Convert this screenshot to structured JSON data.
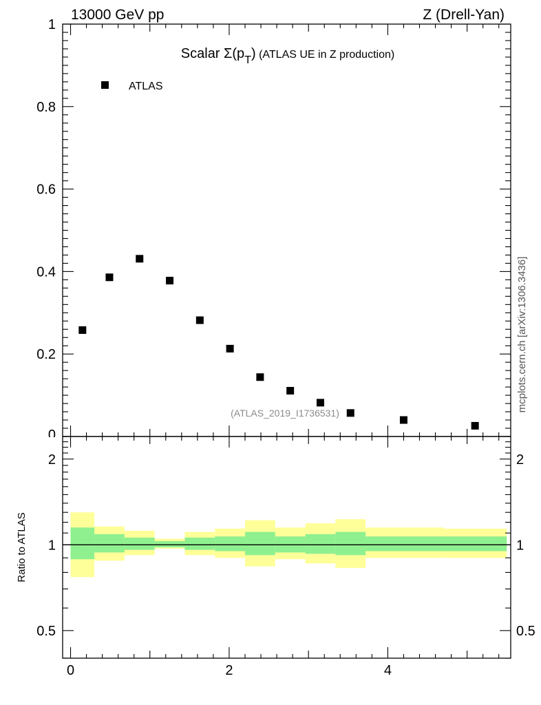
{
  "header": {
    "left": "13000 GeV pp",
    "right": "Z (Drell-Yan)"
  },
  "side_note": "mcplots.cern.ch [arXiv:1306.3436]",
  "watermark": "(ATLAS_2019_I1736531)",
  "chart_data": [
    {
      "type": "scatter",
      "title_parts": [
        "Scalar ",
        "Σ(p",
        "T",
        ")",
        " (ATLAS UE in Z production)"
      ],
      "xlim": [
        -0.1,
        5.55
      ],
      "ylim": [
        0,
        1.0
      ],
      "yticks": [
        0.2,
        0.4,
        0.6,
        0.8,
        1
      ],
      "ytick_labels": [
        "0.2",
        "0.4",
        "0.6",
        "0.8",
        "1"
      ],
      "bottom_tick_label": "0",
      "legend": {
        "placement": "top-left",
        "marker": "square"
      },
      "series": [
        {
          "name": "ATLAS",
          "color": "#000000",
          "x": [
            0.15,
            0.49,
            0.87,
            1.25,
            1.63,
            2.01,
            2.39,
            2.77,
            3.15,
            3.53,
            4.2,
            5.1
          ],
          "y": [
            0.258,
            0.386,
            0.431,
            0.378,
            0.282,
            0.213,
            0.144,
            0.111,
            0.082,
            0.057,
            0.04,
            0.026
          ]
        }
      ]
    },
    {
      "type": "area",
      "ylabel": "Ratio to ATLAS",
      "xlim": [
        -0.1,
        5.55
      ],
      "ylim": [
        0.4,
        2.4
      ],
      "log_y": true,
      "yticks": [
        0.5,
        1,
        2
      ],
      "ytick_labels": [
        "0.5",
        "1",
        "2"
      ],
      "xticks": [
        0,
        2,
        4
      ],
      "xtick_labels": [
        "0",
        "2",
        "4"
      ],
      "reference_line": 1,
      "band_colors": {
        "outer": "#ffff99",
        "inner": "#8ff08f"
      },
      "bins": [
        {
          "x0": 0.0,
          "x1": 0.3,
          "outer_lo": 0.77,
          "outer_hi": 1.3,
          "inner_lo": 0.89,
          "inner_hi": 1.15
        },
        {
          "x0": 0.3,
          "x1": 0.68,
          "outer_lo": 0.88,
          "outer_hi": 1.16,
          "inner_lo": 0.94,
          "inner_hi": 1.09
        },
        {
          "x0": 0.68,
          "x1": 1.06,
          "outer_lo": 0.92,
          "outer_hi": 1.12,
          "inner_lo": 0.96,
          "inner_hi": 1.06
        },
        {
          "x0": 1.06,
          "x1": 1.44,
          "outer_lo": 0.97,
          "outer_hi": 1.05,
          "inner_lo": 0.98,
          "inner_hi": 1.03
        },
        {
          "x0": 1.44,
          "x1": 1.82,
          "outer_lo": 0.92,
          "outer_hi": 1.11,
          "inner_lo": 0.96,
          "inner_hi": 1.06
        },
        {
          "x0": 1.82,
          "x1": 2.2,
          "outer_lo": 0.9,
          "outer_hi": 1.14,
          "inner_lo": 0.95,
          "inner_hi": 1.07
        },
        {
          "x0": 2.2,
          "x1": 2.58,
          "outer_lo": 0.84,
          "outer_hi": 1.22,
          "inner_lo": 0.92,
          "inner_hi": 1.11
        },
        {
          "x0": 2.58,
          "x1": 2.96,
          "outer_lo": 0.89,
          "outer_hi": 1.15,
          "inner_lo": 0.94,
          "inner_hi": 1.07
        },
        {
          "x0": 2.96,
          "x1": 3.34,
          "outer_lo": 0.86,
          "outer_hi": 1.19,
          "inner_lo": 0.93,
          "inner_hi": 1.09
        },
        {
          "x0": 3.34,
          "x1": 3.72,
          "outer_lo": 0.83,
          "outer_hi": 1.23,
          "inner_lo": 0.92,
          "inner_hi": 1.11
        },
        {
          "x0": 3.72,
          "x1": 4.7,
          "outer_lo": 0.9,
          "outer_hi": 1.15,
          "inner_lo": 0.95,
          "inner_hi": 1.07
        },
        {
          "x0": 4.7,
          "x1": 5.5,
          "outer_lo": 0.9,
          "outer_hi": 1.14,
          "inner_lo": 0.95,
          "inner_hi": 1.07
        }
      ]
    }
  ]
}
